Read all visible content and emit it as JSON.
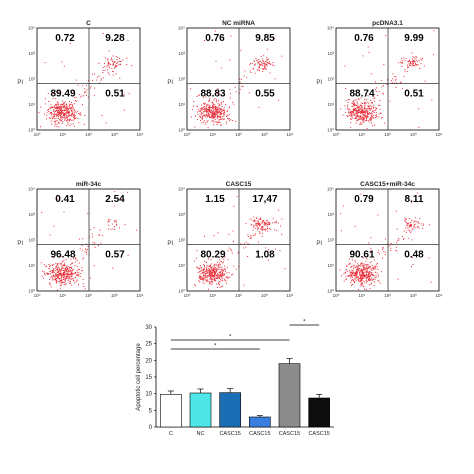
{
  "chart_data": [
    {
      "type": "scatter",
      "title": "C",
      "x_ticks": [
        "10⁰",
        "10¹",
        "10²",
        "10³",
        "10⁴"
      ],
      "y_ticks": [
        "10⁰",
        "10¹",
        "10²",
        "10³",
        "10⁴"
      ],
      "ylabel": "PI",
      "quadrants": {
        "upper_left": "0.72",
        "upper_right": "9.28",
        "lower_left": "89.49",
        "lower_right": "0.51"
      }
    },
    {
      "type": "scatter",
      "title": "NC miRNA",
      "x_ticks": [
        "10⁰",
        "10¹",
        "10²",
        "10³",
        "10⁴"
      ],
      "y_ticks": [
        "10⁰",
        "10¹",
        "10²",
        "10³",
        "10⁴"
      ],
      "ylabel": "PI",
      "quadrants": {
        "upper_left": "0.76",
        "upper_right": "9.85",
        "lower_left": "88.83",
        "lower_right": "0.55"
      }
    },
    {
      "type": "scatter",
      "title": "pcDNA3.1",
      "x_ticks": [
        "10⁰",
        "10¹",
        "10²",
        "10³",
        "10⁴"
      ],
      "y_ticks": [
        "10⁰",
        "10¹",
        "10²",
        "10³",
        "10⁴"
      ],
      "ylabel": "PI",
      "quadrants": {
        "upper_left": "0.76",
        "upper_right": "9.99",
        "lower_left": "88.74",
        "lower_right": "0.51"
      }
    },
    {
      "type": "scatter",
      "title": "miR-34c",
      "x_ticks": [
        "10⁰",
        "10¹",
        "10²",
        "10³",
        "10⁴"
      ],
      "y_ticks": [
        "10⁰",
        "10¹",
        "10²",
        "10³",
        "10⁴"
      ],
      "ylabel": "PI",
      "quadrants": {
        "upper_left": "0.41",
        "upper_right": "2.54",
        "lower_left": "96.48",
        "lower_right": "0.57"
      }
    },
    {
      "type": "scatter",
      "title": "CASC15",
      "x_ticks": [
        "10⁰",
        "10¹",
        "10²",
        "10³",
        "10⁴"
      ],
      "y_ticks": [
        "10⁰",
        "10¹",
        "10²",
        "10³",
        "10⁴"
      ],
      "ylabel": "PI",
      "quadrants": {
        "upper_left": "1.15",
        "upper_right": "17,47",
        "lower_left": "80.29",
        "lower_right": "1.08"
      }
    },
    {
      "type": "scatter",
      "title": "CASC15+miR-34c",
      "x_ticks": [
        "10⁰",
        "10¹",
        "10²",
        "10³",
        "10⁴"
      ],
      "y_ticks": [
        "10⁰",
        "10¹",
        "10²",
        "10³",
        "10⁴"
      ],
      "ylabel": "PI",
      "quadrants": {
        "upper_left": "0.79",
        "upper_right": "8.11",
        "lower_left": "90.61",
        "lower_right": "0.48"
      }
    },
    {
      "type": "bar",
      "categories": [
        "C",
        "NC",
        "CASC15",
        "CASC15",
        "CASC15",
        "CASC15"
      ],
      "values": [
        9.8,
        10.2,
        10.3,
        3.0,
        19.0,
        8.7
      ],
      "errors": [
        1.0,
        1.2,
        1.2,
        0.4,
        1.5,
        1.1
      ],
      "colors": [
        "#ffffff",
        "#4ee6e6",
        "#1c6eb4",
        "#3a7fe0",
        "#8c8c8c",
        "#0d0d0d"
      ],
      "ylabel": "Apoptotic cell percentage",
      "ylim": [
        0,
        30
      ],
      "y_ticks": [
        0,
        5,
        10,
        15,
        20,
        25,
        30
      ],
      "significance_marker": "*",
      "significance": [
        {
          "from": 0,
          "to": 3,
          "label": "*"
        },
        {
          "from": 0,
          "to": 4,
          "label": "*"
        },
        {
          "from": 4,
          "to": 5,
          "label": "*"
        }
      ]
    }
  ],
  "colors": {
    "dots": "#e8303a",
    "axes": "#000000",
    "gate": "#333333"
  }
}
